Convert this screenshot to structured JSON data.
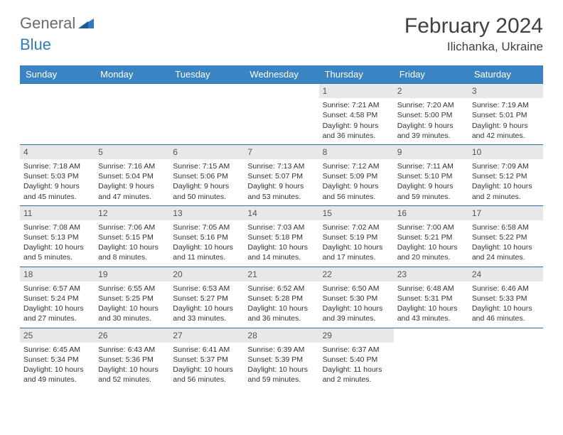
{
  "logo": {
    "part1": "General",
    "part2": "Blue"
  },
  "title": "February 2024",
  "location": "Ilichanka, Ukraine",
  "header_bg": "#3b84c4",
  "header_text": "#ffffff",
  "row_border": "#2d6ea8",
  "daynum_bg": "#e8e8e8",
  "weekdays": [
    "Sunday",
    "Monday",
    "Tuesday",
    "Wednesday",
    "Thursday",
    "Friday",
    "Saturday"
  ],
  "weeks": [
    [
      null,
      null,
      null,
      null,
      {
        "n": "1",
        "sr": "Sunrise: 7:21 AM",
        "ss": "Sunset: 4:58 PM",
        "d1": "Daylight: 9 hours",
        "d2": "and 36 minutes."
      },
      {
        "n": "2",
        "sr": "Sunrise: 7:20 AM",
        "ss": "Sunset: 5:00 PM",
        "d1": "Daylight: 9 hours",
        "d2": "and 39 minutes."
      },
      {
        "n": "3",
        "sr": "Sunrise: 7:19 AM",
        "ss": "Sunset: 5:01 PM",
        "d1": "Daylight: 9 hours",
        "d2": "and 42 minutes."
      }
    ],
    [
      {
        "n": "4",
        "sr": "Sunrise: 7:18 AM",
        "ss": "Sunset: 5:03 PM",
        "d1": "Daylight: 9 hours",
        "d2": "and 45 minutes."
      },
      {
        "n": "5",
        "sr": "Sunrise: 7:16 AM",
        "ss": "Sunset: 5:04 PM",
        "d1": "Daylight: 9 hours",
        "d2": "and 47 minutes."
      },
      {
        "n": "6",
        "sr": "Sunrise: 7:15 AM",
        "ss": "Sunset: 5:06 PM",
        "d1": "Daylight: 9 hours",
        "d2": "and 50 minutes."
      },
      {
        "n": "7",
        "sr": "Sunrise: 7:13 AM",
        "ss": "Sunset: 5:07 PM",
        "d1": "Daylight: 9 hours",
        "d2": "and 53 minutes."
      },
      {
        "n": "8",
        "sr": "Sunrise: 7:12 AM",
        "ss": "Sunset: 5:09 PM",
        "d1": "Daylight: 9 hours",
        "d2": "and 56 minutes."
      },
      {
        "n": "9",
        "sr": "Sunrise: 7:11 AM",
        "ss": "Sunset: 5:10 PM",
        "d1": "Daylight: 9 hours",
        "d2": "and 59 minutes."
      },
      {
        "n": "10",
        "sr": "Sunrise: 7:09 AM",
        "ss": "Sunset: 5:12 PM",
        "d1": "Daylight: 10 hours",
        "d2": "and 2 minutes."
      }
    ],
    [
      {
        "n": "11",
        "sr": "Sunrise: 7:08 AM",
        "ss": "Sunset: 5:13 PM",
        "d1": "Daylight: 10 hours",
        "d2": "and 5 minutes."
      },
      {
        "n": "12",
        "sr": "Sunrise: 7:06 AM",
        "ss": "Sunset: 5:15 PM",
        "d1": "Daylight: 10 hours",
        "d2": "and 8 minutes."
      },
      {
        "n": "13",
        "sr": "Sunrise: 7:05 AM",
        "ss": "Sunset: 5:16 PM",
        "d1": "Daylight: 10 hours",
        "d2": "and 11 minutes."
      },
      {
        "n": "14",
        "sr": "Sunrise: 7:03 AM",
        "ss": "Sunset: 5:18 PM",
        "d1": "Daylight: 10 hours",
        "d2": "and 14 minutes."
      },
      {
        "n": "15",
        "sr": "Sunrise: 7:02 AM",
        "ss": "Sunset: 5:19 PM",
        "d1": "Daylight: 10 hours",
        "d2": "and 17 minutes."
      },
      {
        "n": "16",
        "sr": "Sunrise: 7:00 AM",
        "ss": "Sunset: 5:21 PM",
        "d1": "Daylight: 10 hours",
        "d2": "and 20 minutes."
      },
      {
        "n": "17",
        "sr": "Sunrise: 6:58 AM",
        "ss": "Sunset: 5:22 PM",
        "d1": "Daylight: 10 hours",
        "d2": "and 24 minutes."
      }
    ],
    [
      {
        "n": "18",
        "sr": "Sunrise: 6:57 AM",
        "ss": "Sunset: 5:24 PM",
        "d1": "Daylight: 10 hours",
        "d2": "and 27 minutes."
      },
      {
        "n": "19",
        "sr": "Sunrise: 6:55 AM",
        "ss": "Sunset: 5:25 PM",
        "d1": "Daylight: 10 hours",
        "d2": "and 30 minutes."
      },
      {
        "n": "20",
        "sr": "Sunrise: 6:53 AM",
        "ss": "Sunset: 5:27 PM",
        "d1": "Daylight: 10 hours",
        "d2": "and 33 minutes."
      },
      {
        "n": "21",
        "sr": "Sunrise: 6:52 AM",
        "ss": "Sunset: 5:28 PM",
        "d1": "Daylight: 10 hours",
        "d2": "and 36 minutes."
      },
      {
        "n": "22",
        "sr": "Sunrise: 6:50 AM",
        "ss": "Sunset: 5:30 PM",
        "d1": "Daylight: 10 hours",
        "d2": "and 39 minutes."
      },
      {
        "n": "23",
        "sr": "Sunrise: 6:48 AM",
        "ss": "Sunset: 5:31 PM",
        "d1": "Daylight: 10 hours",
        "d2": "and 43 minutes."
      },
      {
        "n": "24",
        "sr": "Sunrise: 6:46 AM",
        "ss": "Sunset: 5:33 PM",
        "d1": "Daylight: 10 hours",
        "d2": "and 46 minutes."
      }
    ],
    [
      {
        "n": "25",
        "sr": "Sunrise: 6:45 AM",
        "ss": "Sunset: 5:34 PM",
        "d1": "Daylight: 10 hours",
        "d2": "and 49 minutes."
      },
      {
        "n": "26",
        "sr": "Sunrise: 6:43 AM",
        "ss": "Sunset: 5:36 PM",
        "d1": "Daylight: 10 hours",
        "d2": "and 52 minutes."
      },
      {
        "n": "27",
        "sr": "Sunrise: 6:41 AM",
        "ss": "Sunset: 5:37 PM",
        "d1": "Daylight: 10 hours",
        "d2": "and 56 minutes."
      },
      {
        "n": "28",
        "sr": "Sunrise: 6:39 AM",
        "ss": "Sunset: 5:39 PM",
        "d1": "Daylight: 10 hours",
        "d2": "and 59 minutes."
      },
      {
        "n": "29",
        "sr": "Sunrise: 6:37 AM",
        "ss": "Sunset: 5:40 PM",
        "d1": "Daylight: 11 hours",
        "d2": "and 2 minutes."
      },
      null,
      null
    ]
  ]
}
